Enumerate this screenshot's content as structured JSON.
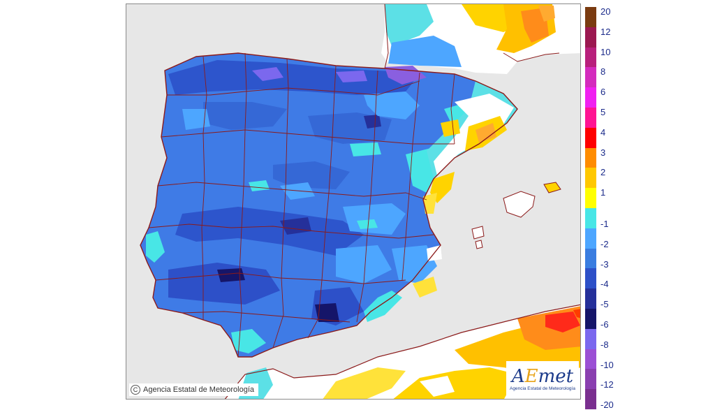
{
  "copyright": "Agencia Estatal de Meteorología",
  "logo": {
    "brand_a": "A",
    "brand_e": "E",
    "brand_met": "met",
    "subtitle": "Agencia Estatal de Meteorología"
  },
  "legend": {
    "positive": [
      {
        "label": "20",
        "color": "#7a3b10"
      },
      {
        "label": "12",
        "color": "#9b1850"
      },
      {
        "label": "10",
        "color": "#b8207c"
      },
      {
        "label": "8",
        "color": "#d42bbd"
      },
      {
        "label": "6",
        "color": "#f020f0"
      },
      {
        "label": "5",
        "color": "#ff1493"
      },
      {
        "label": "4",
        "color": "#ff0000"
      },
      {
        "label": "3",
        "color": "#ff8c00"
      },
      {
        "label": "2",
        "color": "#ffc800"
      },
      {
        "label": "1",
        "color": "#ffff00"
      }
    ],
    "negative": [
      {
        "label": "-1",
        "color": "#48e6e6"
      },
      {
        "label": "-2",
        "color": "#4da6ff"
      },
      {
        "label": "-3",
        "color": "#3a7de0"
      },
      {
        "label": "-4",
        "color": "#2d50c8"
      },
      {
        "label": "-5",
        "color": "#25309a"
      },
      {
        "label": "-6",
        "color": "#151569"
      },
      {
        "label": "-8",
        "color": "#7b68ee"
      },
      {
        "label": "-10",
        "color": "#9b4fd4"
      },
      {
        "label": "-12",
        "color": "#8a3fb0"
      },
      {
        "label": "-20",
        "color": "#7a2f8f"
      }
    ]
  }
}
